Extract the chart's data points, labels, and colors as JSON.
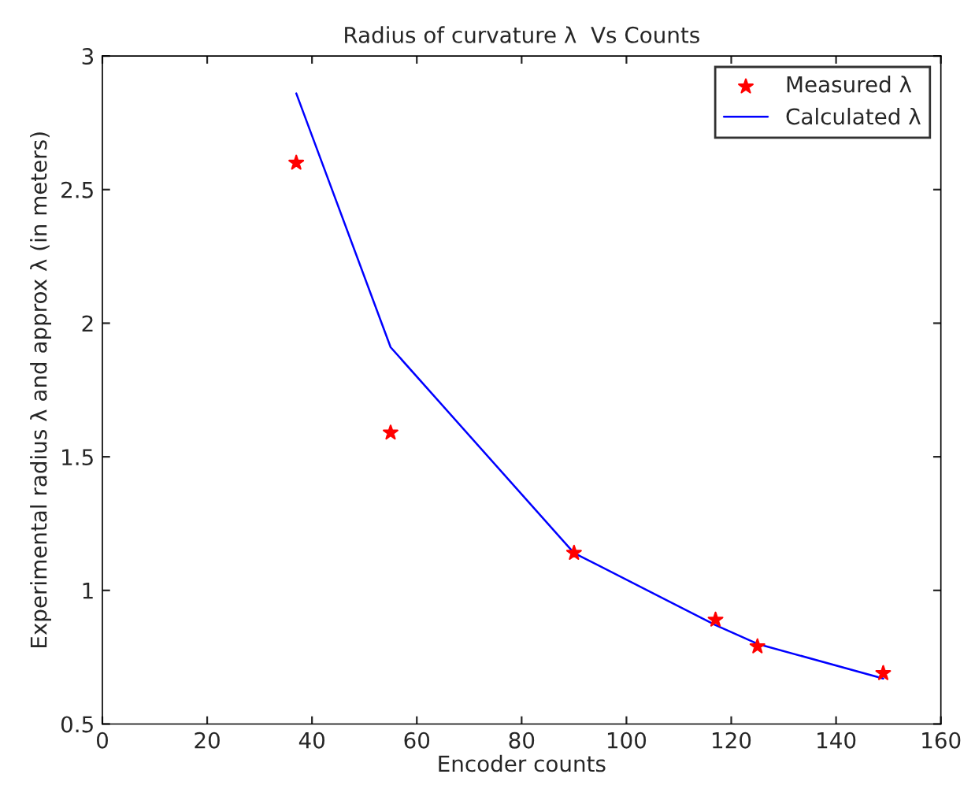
{
  "chart_data": {
    "type": "scatter",
    "title": "Radius of curvature λ  Vs Counts",
    "xlabel": "Encoder counts",
    "ylabel": "Experimental radius λ and approx λ (in meters)",
    "series": [
      {
        "name": "Measured λ",
        "color": "#ff0000",
        "marker": "star",
        "x": [
          37,
          55,
          90,
          117,
          125,
          149
        ],
        "values": [
          2.6,
          1.59,
          1.14,
          0.89,
          0.79,
          0.69
        ]
      },
      {
        "name": "Calculated λ",
        "type": "line",
        "color": "#0000ff",
        "marker": "none",
        "x": [
          37,
          55,
          90,
          117,
          125,
          149
        ],
        "values": [
          2.86,
          1.91,
          1.14,
          0.87,
          0.8,
          0.67
        ]
      }
    ],
    "xlim": [
      0,
      160
    ],
    "xticks": [
      0,
      20,
      40,
      60,
      80,
      100,
      120,
      140,
      160
    ],
    "ylim": [
      0.5,
      3
    ],
    "yticks": [
      0.5,
      1,
      1.5,
      2,
      2.5,
      3
    ],
    "grid": false,
    "legend": "top right"
  }
}
